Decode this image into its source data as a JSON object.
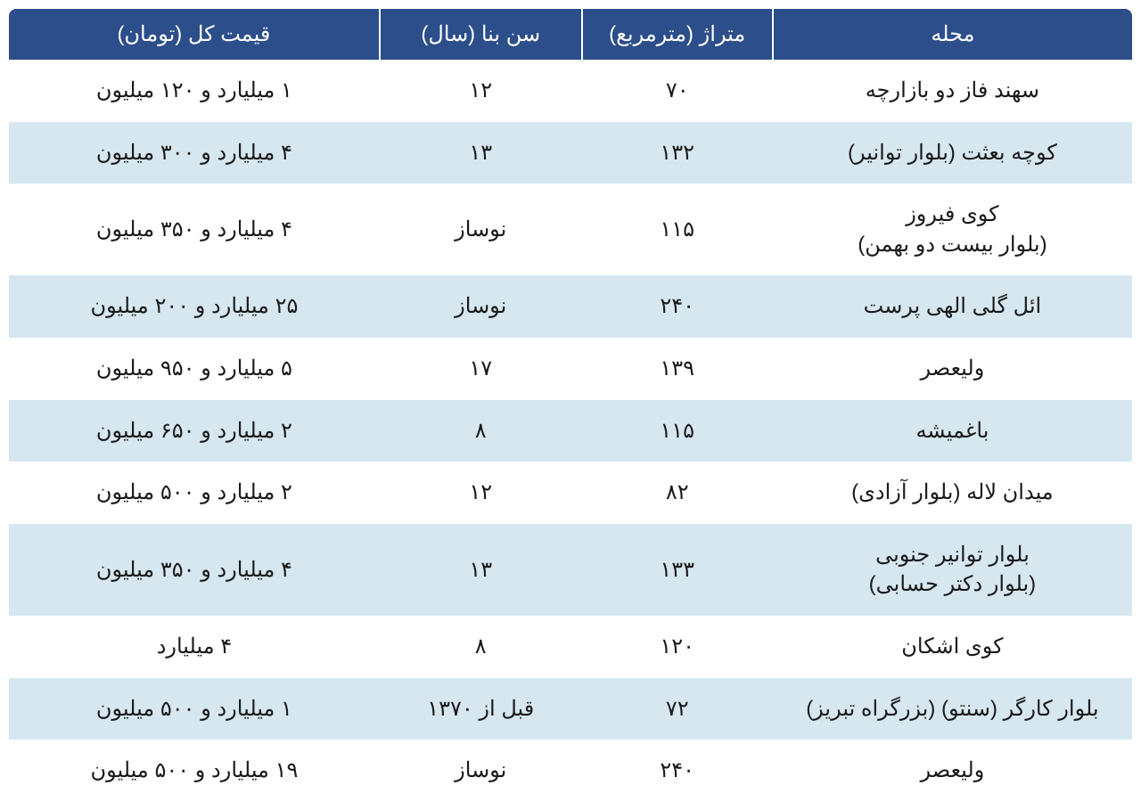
{
  "table": {
    "columns": [
      {
        "key": "neighborhood",
        "label": "محله",
        "class": "col-neighborhood"
      },
      {
        "key": "area",
        "label": "متراژ (مترمربع)",
        "class": "col-area"
      },
      {
        "key": "age",
        "label": "سن بنا (سال)",
        "class": "col-age"
      },
      {
        "key": "price",
        "label": "قیمت کل (تومان)",
        "class": "col-price"
      }
    ],
    "rows": [
      {
        "neighborhood": "سهند فاز دو بازارچه",
        "area": "۷۰",
        "age": "۱۲",
        "price": "۱ میلیارد و ۱۲۰ میلیون"
      },
      {
        "neighborhood": "کوچه بعثت (بلوار توانیر)",
        "area": "۱۳۲",
        "age": "۱۳",
        "price": "۴ میلیارد و ۳۰۰ میلیون"
      },
      {
        "neighborhood": "کوی فیروز\n(بلوار بیست دو بهمن)",
        "area": "۱۱۵",
        "age": "نوساز",
        "price": "۴ میلیارد و ۳۵۰ میلیون"
      },
      {
        "neighborhood": "ائل گلی الهی پرست",
        "area": "۲۴۰",
        "age": "نوساز",
        "price": "۲۵ میلیارد و ۲۰۰ میلیون"
      },
      {
        "neighborhood": "ولیعصر",
        "area": "۱۳۹",
        "age": "۱۷",
        "price": "۵ میلیارد و ۹۵۰ میلیون"
      },
      {
        "neighborhood": "باغمیشه",
        "area": "۱۱۵",
        "age": "۸",
        "price": "۲ میلیارد و ۶۵۰ میلیون"
      },
      {
        "neighborhood": "میدان لاله (بلوار آزادی)",
        "area": "۸۲",
        "age": "۱۲",
        "price": "۲ میلیارد و ۵۰۰ میلیون"
      },
      {
        "neighborhood": "بلوار توانیر جنوبی\n(بلوار دکتر حسابی)",
        "area": "۱۳۳",
        "age": "۱۳",
        "price": "۴ میلیارد و ۳۵۰ میلیون"
      },
      {
        "neighborhood": "کوی اشکان",
        "area": "۱۲۰",
        "age": "۸",
        "price": "۴ میلیارد"
      },
      {
        "neighborhood": "بلوار کارگر (سنتو) (بزرگراه تبریز)",
        "area": "۷۲",
        "age": "قبل از ۱۳۷۰",
        "price": "۱ میلیارد و ۵۰۰ میلیون"
      },
      {
        "neighborhood": "ولیعصر",
        "area": "۲۴۰",
        "age": "نوساز",
        "price": "۱۹ میلیارد و ۵۰۰ میلیون"
      }
    ],
    "header_bg": "#2c4e8a",
    "header_color": "#ffffff",
    "row_odd_bg": "#ffffff",
    "row_even_bg": "#d6e7f0",
    "text_color": "#1a1a1a",
    "header_fontsize": 24,
    "cell_fontsize": 24,
    "border_radius": 8
  }
}
